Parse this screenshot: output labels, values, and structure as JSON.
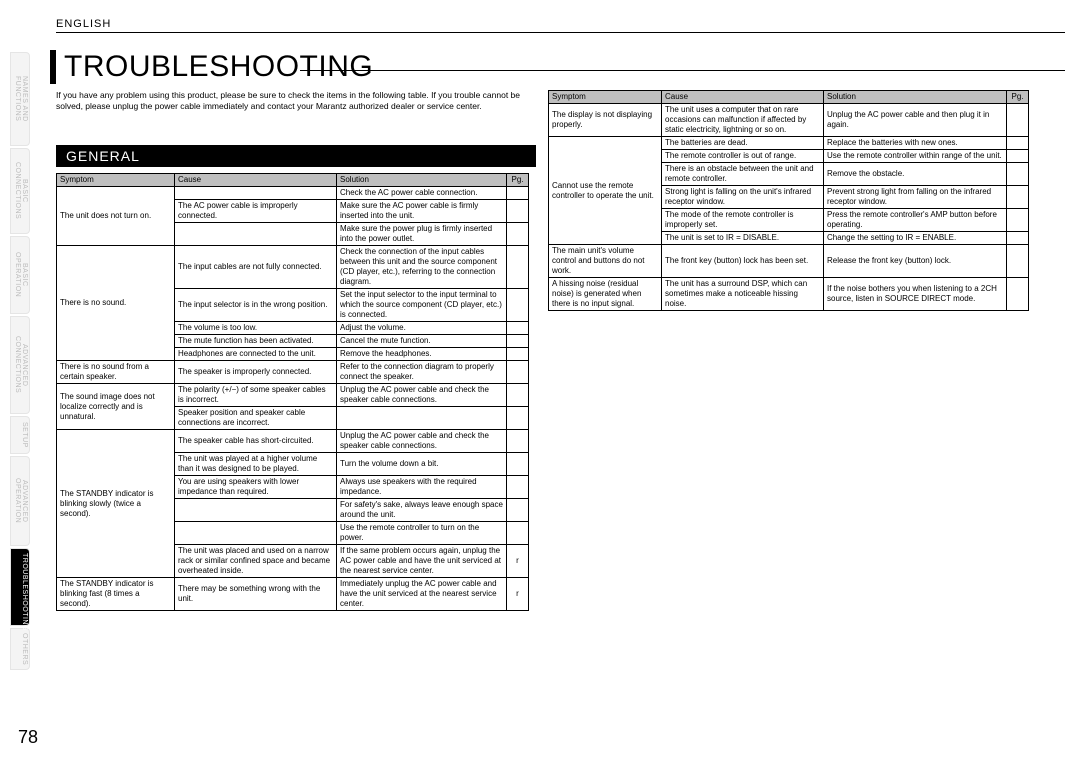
{
  "lang": "ENGLISH",
  "title": "TROUBLESHOOTING",
  "intro": "If you have any problem using this product, please be sure to check the items in the following table.\nIf you trouble cannot be solved, please unplug the power cable immediately and contact your Marantz authorized dealer or service center.",
  "section": "GENERAL",
  "pagenum": "78",
  "nav": [
    "NAMES AND FUNCTIONS",
    "BASIC CONNECTIONS",
    "BASIC OPERATION",
    "ADVANCED CONNECTIONS",
    "SETUP",
    "ADVANCED OPERATION",
    "TROUBLESHOOTING",
    "OTHERS"
  ],
  "nav_active": 6,
  "headers": [
    "Symptom",
    "Cause",
    "Solution",
    "Pg."
  ],
  "table1": [
    {
      "s": "The unit does not turn on.",
      "rows": [
        [
          "",
          "Check the AC power cable connection.",
          ""
        ],
        [
          "The AC power cable is improperly connected.",
          "Make sure the AC power cable is ﬁrmly inserted into the unit.",
          ""
        ],
        [
          "",
          "Make sure the power plug is ﬁrmly inserted into the power outlet.",
          ""
        ]
      ]
    },
    {
      "s": "There is no sound.",
      "rows": [
        [
          "The input cables are not fully connected.",
          "Check the connection of the input cables between this unit and the source component (CD player, etc.), referring to the connection diagram.",
          ""
        ],
        [
          "The input selector is in the wrong position.",
          "Set the input selector to the input terminal to which the source component (CD player, etc.) is connected.",
          ""
        ],
        [
          "The volume is too low.",
          "Adjust the volume.",
          ""
        ],
        [
          "The mute function has been activated.",
          "Cancel the mute function.",
          ""
        ],
        [
          "Headphones are connected to the unit.",
          "Remove the headphones.",
          ""
        ]
      ]
    },
    {
      "s": "There is no sound from a certain speaker.",
      "rows": [
        [
          "The speaker is improperly connected.",
          "Refer to the connection diagram to properly connect the speaker.",
          ""
        ]
      ]
    },
    {
      "s": "The sound image does not localize correctly and is unnatural.",
      "rows": [
        [
          "The polarity (+/−) of some speaker cables is incorrect.",
          "Unplug the AC power cable and check the speaker cable connections.",
          ""
        ],
        [
          "Speaker position and speaker cable connections are incorrect.",
          "",
          ""
        ]
      ]
    },
    {
      "s": "The STANDBY indicator is blinking slowly (twice a second).",
      "rows": [
        [
          "The speaker cable has short-circuited.",
          "Unplug the AC power cable and check the speaker cable connections.",
          ""
        ],
        [
          "The unit was played at a higher volume than it was designed to be played.",
          "Turn the volume down a bit.",
          ""
        ],
        [
          "You are using speakers with lower impedance than required.",
          "Always use speakers with the required impedance.",
          ""
        ],
        [
          "",
          "For safety's sake, always leave enough space around the unit.",
          ""
        ],
        [
          "",
          "Use the remote controller to turn on the power.",
          ""
        ],
        [
          "The unit was placed and used on a narrow rack or similar conﬁned space and became overheated inside.",
          "If the same problem occurs again, unplug the AC power cable and have the unit serviced at the nearest service center.",
          "r"
        ]
      ]
    },
    {
      "s": "The STANDBY indicator is blinking fast (8 times a second).",
      "rows": [
        [
          "There may be something wrong with the unit.",
          "Immediately unplug the AC power cable and have the unit serviced at the nearest service center.",
          "r"
        ]
      ]
    }
  ],
  "table2": [
    {
      "s": "The display is not displaying properly.",
      "rows": [
        [
          "The unit uses a computer that on rare occasions can malfunction if affected by static electricity, lightning or so on.",
          "Unplug the AC power cable and then plug it in again.",
          ""
        ]
      ]
    },
    {
      "s": "Cannot use the remote controller to operate the unit.",
      "rows": [
        [
          "The batteries are dead.",
          "Replace the batteries with new ones.",
          ""
        ],
        [
          "The remote controller is out of range.",
          "Use the remote controller within range of the unit.",
          ""
        ],
        [
          "There is an obstacle between the unit and remote controller.",
          "Remove the obstacle.",
          ""
        ],
        [
          "Strong light is falling on the unit's infrared receptor window.",
          "Prevent strong light from falling on the infrared receptor window.",
          ""
        ],
        [
          "The mode of the remote controller is improperly set.",
          "Press the remote controller's AMP button before operating.",
          ""
        ],
        [
          "The unit is set to IR = DISABLE.",
          "Change the setting to IR = ENABLE.",
          ""
        ]
      ]
    },
    {
      "s": "The main unit's volume control and buttons do not work.",
      "rows": [
        [
          "The front key (button) lock has been set.",
          "Release the front key (button) lock.",
          ""
        ]
      ]
    },
    {
      "s": "A hissing noise (residual noise) is generated when there is no input signal.",
      "rows": [
        [
          "The unit has a surround DSP, which can sometimes make a noticeable hissing noise.",
          "If the noise bothers you when listening to a 2CH source, listen in SOURCE DIRECT mode.",
          ""
        ]
      ]
    }
  ]
}
